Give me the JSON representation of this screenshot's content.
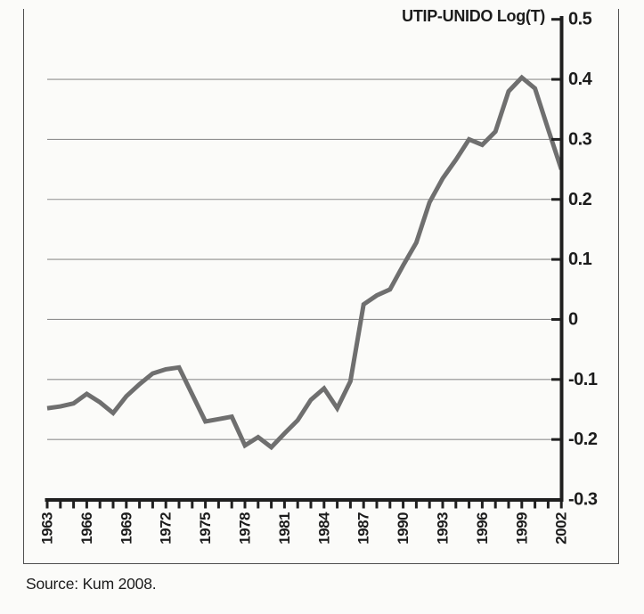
{
  "chart_title": "UTIP-UNIDO Log(T)",
  "source_note": "Source: Kum 2008.",
  "colors": {
    "line": "#6f6f6f",
    "grid": "#8f8f8f",
    "axis": "#1f1f1f",
    "text": "#1c1c1c",
    "frame": "#4f4f4f",
    "background": "#fbfbf9"
  },
  "chart_data": {
    "type": "line",
    "title": "UTIP-UNIDO Log(T)",
    "xlabel": "",
    "ylabel": "",
    "x": [
      1963,
      1964,
      1965,
      1966,
      1967,
      1968,
      1969,
      1970,
      1971,
      1972,
      1973,
      1974,
      1975,
      1976,
      1977,
      1978,
      1979,
      1980,
      1981,
      1982,
      1983,
      1984,
      1985,
      1986,
      1987,
      1988,
      1989,
      1990,
      1991,
      1992,
      1993,
      1994,
      1995,
      1996,
      1997,
      1998,
      1999,
      2000,
      2001,
      2002
    ],
    "values": [
      -0.148,
      -0.145,
      -0.14,
      -0.124,
      -0.138,
      -0.156,
      -0.128,
      -0.108,
      -0.09,
      -0.083,
      -0.08,
      -0.125,
      -0.17,
      -0.166,
      -0.162,
      -0.21,
      -0.196,
      -0.213,
      -0.19,
      -0.168,
      -0.134,
      -0.115,
      -0.148,
      -0.103,
      0.025,
      0.04,
      0.05,
      0.09,
      0.128,
      0.195,
      0.235,
      0.266,
      0.3,
      0.291,
      0.313,
      0.38,
      0.403,
      0.385,
      0.317,
      0.25
    ],
    "xlim": [
      1963,
      2002
    ],
    "ylim": [
      -0.3,
      0.5
    ],
    "x_tick_labels": [
      "1963",
      "1966",
      "1969",
      "1972",
      "1975",
      "1978",
      "1981",
      "1984",
      "1987",
      "1990",
      "1993",
      "1996",
      "1999",
      "2002"
    ],
    "x_tick_label_years": [
      1963,
      1966,
      1969,
      1972,
      1975,
      1978,
      1981,
      1984,
      1987,
      1990,
      1993,
      1996,
      1999,
      2002
    ],
    "y_ticks": [
      0.5,
      0.4,
      0.3,
      0.2,
      0.1,
      0,
      -0.1,
      -0.2,
      -0.3
    ],
    "y_tick_labels": [
      "0.5",
      "0.4",
      "0.3",
      "0.2",
      "0.1",
      "0",
      "-0.1",
      "-0.2",
      "-0.3"
    ],
    "grid_values": [
      0.4,
      0.3,
      0.2,
      0.1,
      0,
      -0.1,
      -0.2
    ],
    "grid": "horizontal",
    "y_axis_position": "right",
    "x_tick_rotation": -90,
    "legend_position": "none"
  }
}
